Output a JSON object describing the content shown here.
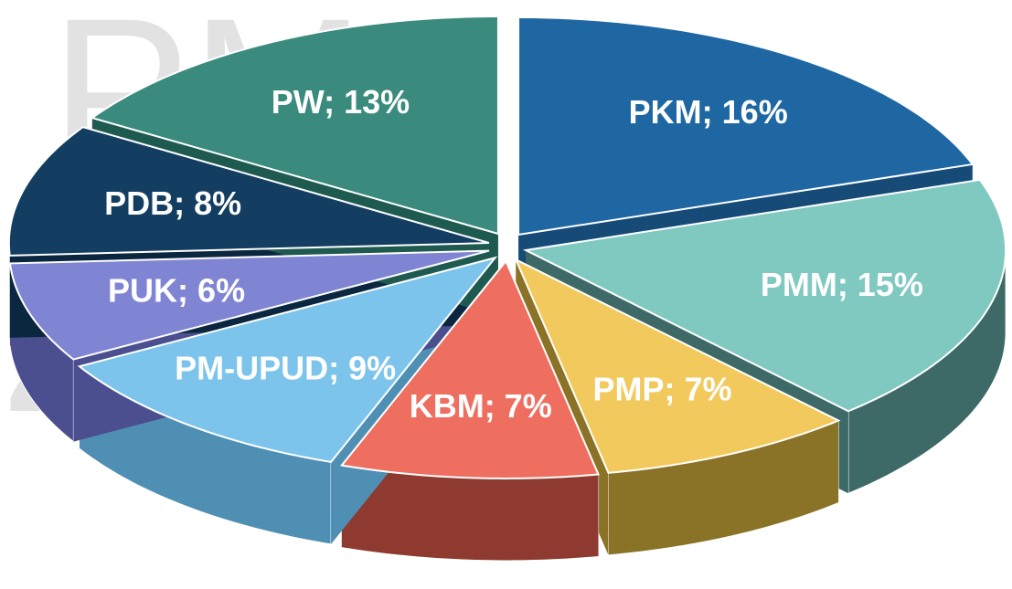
{
  "chart_data": {
    "type": "pie3d",
    "watermark": [
      "PM",
      "23"
    ],
    "values": [
      16,
      15,
      7,
      7,
      9,
      6,
      8,
      13
    ],
    "value_labels": [
      "PKM; 16%",
      "PMM; 15%",
      "PMP; 7%",
      "KBM; 7%",
      "PM-UPUD; 9%",
      "PUK; 6%",
      "PDB; 8%",
      "PW; 13%"
    ],
    "colors": [
      "#1f67a3",
      "#7fc9c1",
      "#f2c95c",
      "#ee6e5f",
      "#7cc4ec",
      "#8085d3",
      "#133e62",
      "#3a8b7e"
    ],
    "side_colors": [
      "#164b78",
      "#3d6a66",
      "#8a7226",
      "#8e3a30",
      "#4f8fb3",
      "#4b4f8f",
      "#0b2740",
      "#1f5a50"
    ]
  }
}
